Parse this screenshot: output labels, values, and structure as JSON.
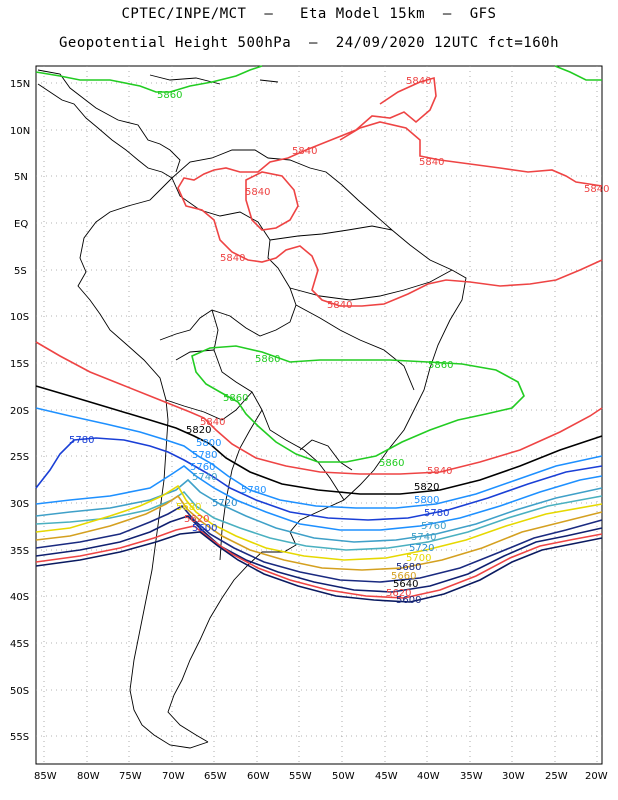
{
  "header": {
    "line1": "CPTEC/INPE/MCT  –   Eta Model 15km  –  GFS",
    "line2": "Geopotential Height 500hPa  –  24/09/2020 12UTC fct=160h"
  },
  "axes": {
    "lat_labels": [
      "15N",
      "10N",
      "5N",
      "EQ",
      "5S",
      "10S",
      "15S",
      "20S",
      "25S",
      "30S",
      "35S",
      "40S",
      "45S",
      "50S",
      "55S"
    ],
    "lon_labels": [
      "85W",
      "80W",
      "75W",
      "70W",
      "65W",
      "60W",
      "55W",
      "50W",
      "45W",
      "40W",
      "35W",
      "30W",
      "25W",
      "20W"
    ]
  },
  "contour_labels": [
    {
      "text": "5860",
      "color": "#22cc22"
    },
    {
      "text": "5840",
      "color": "#ee4444"
    },
    {
      "text": "5840",
      "color": "#ee4444"
    },
    {
      "text": "5840",
      "color": "#ee4444"
    },
    {
      "text": "5840",
      "color": "#ee4444"
    },
    {
      "text": "5840",
      "color": "#ee4444"
    },
    {
      "text": "5840",
      "color": "#ee4444"
    },
    {
      "text": "5840",
      "color": "#ee4444"
    },
    {
      "text": "5860",
      "color": "#22cc22"
    },
    {
      "text": "5860",
      "color": "#22cc22"
    },
    {
      "text": "5860",
      "color": "#22cc22"
    },
    {
      "text": "5860",
      "color": "#22cc22"
    },
    {
      "text": "5840",
      "color": "#ee4444"
    },
    {
      "text": "5840",
      "color": "#ee4444"
    },
    {
      "text": "5820",
      "color": "#000000"
    },
    {
      "text": "5820",
      "color": "#000000"
    },
    {
      "text": "5800",
      "color": "#1e90ff"
    },
    {
      "text": "5800",
      "color": "#1e90ff"
    },
    {
      "text": "5780",
      "color": "#1a3fd6"
    },
    {
      "text": "5780",
      "color": "#1e90ff"
    },
    {
      "text": "5780",
      "color": "#1e90ff"
    },
    {
      "text": "5780",
      "color": "#1a3fd6"
    },
    {
      "text": "5760",
      "color": "#1e90ff"
    },
    {
      "text": "5760",
      "color": "#3fa0c8"
    },
    {
      "text": "5740",
      "color": "#3fa0c8"
    },
    {
      "text": "5740",
      "color": "#3fa0c8"
    },
    {
      "text": "5720",
      "color": "#2a8fd0"
    },
    {
      "text": "5720",
      "color": "#2a8fd0"
    },
    {
      "text": "5700",
      "color": "#e6d800"
    },
    {
      "text": "5680",
      "color": "#e6d800"
    },
    {
      "text": "5680",
      "color": "#1a2a80"
    },
    {
      "text": "5660",
      "color": "#d4a020"
    },
    {
      "text": "5640",
      "color": "#000000"
    },
    {
      "text": "5620",
      "color": "#ee4444"
    },
    {
      "text": "5620",
      "color": "#ee4444"
    },
    {
      "text": "5600",
      "color": "#1a3fd6"
    },
    {
      "text": "5600",
      "color": "#1a2a80"
    }
  ],
  "colors": {
    "c5860": "#22cc22",
    "c5840": "#ee4444",
    "c5820": "#000000",
    "c5800": "#1e90ff",
    "c5780": "#1a3fd6",
    "c5760": "#3fa0c8",
    "c5740": "#4ab0c0",
    "c5720": "#2a8fd0",
    "c5700": "#e6d800",
    "c5680": "#d4a020",
    "c5660": "#1a2a80",
    "c5640": "#102070",
    "c5620": "#ee4444",
    "c5600": "#0a1a60",
    "grid": "#999999",
    "coast": "#000000"
  }
}
